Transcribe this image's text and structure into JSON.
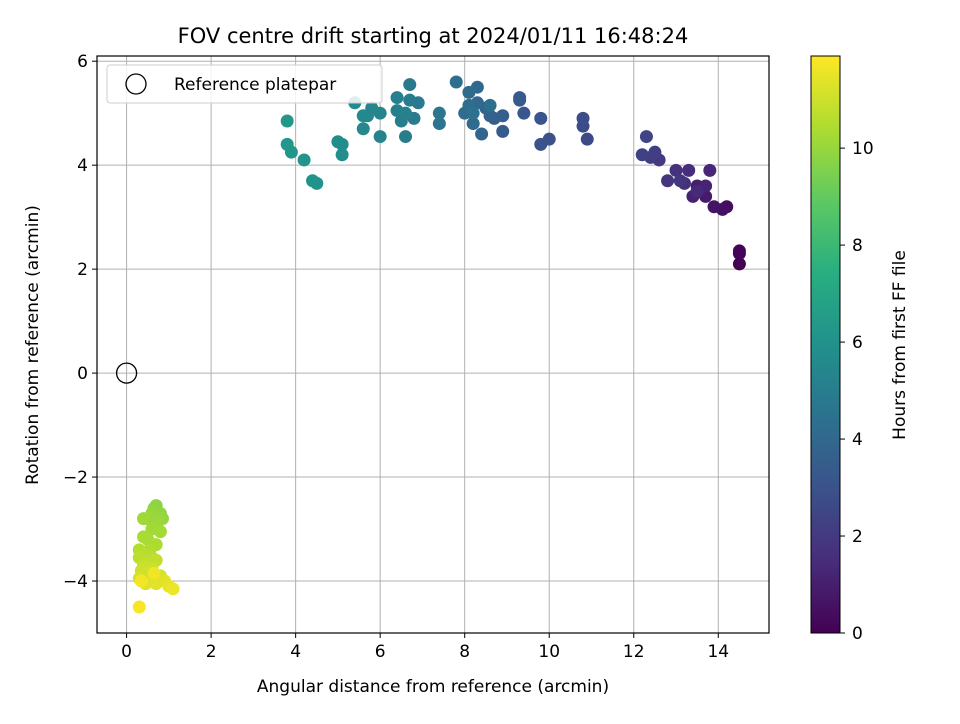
{
  "chart_data": {
    "type": "scatter",
    "title": "FOV centre drift starting at 2024/01/11 16:48:24",
    "xlabel": "Angular distance from reference (arcmin)",
    "ylabel": "Rotation from reference (arcmin)",
    "xlim": [
      -0.7,
      15.2
    ],
    "ylim": [
      -5.0,
      6.1
    ],
    "grid": true,
    "legend": {
      "placement": "top-left",
      "entries": [
        "Reference platepar"
      ]
    },
    "x_ticks": [
      {
        "value": 0,
        "label": "0"
      },
      {
        "value": 2,
        "label": "2"
      },
      {
        "value": 4,
        "label": "4"
      },
      {
        "value": 6,
        "label": "6"
      },
      {
        "value": 8,
        "label": "8"
      },
      {
        "value": 10,
        "label": "10"
      },
      {
        "value": 12,
        "label": "12"
      },
      {
        "value": 14,
        "label": "14"
      }
    ],
    "y_ticks": [
      {
        "value": -4,
        "label": "−4"
      },
      {
        "value": -2,
        "label": "−2"
      },
      {
        "value": 0,
        "label": "0"
      },
      {
        "value": 2,
        "label": "2"
      },
      {
        "value": 4,
        "label": "4"
      },
      {
        "value": 6,
        "label": "6"
      }
    ],
    "reference_point": {
      "x": 0,
      "y": 0,
      "name": "Reference platepar"
    },
    "colorbar": {
      "label": "Hours from first FF file",
      "colormap": "viridis",
      "range": [
        0,
        11.9
      ],
      "ticks": [
        {
          "value": 0,
          "label": "0"
        },
        {
          "value": 2,
          "label": "2"
        },
        {
          "value": 4,
          "label": "4"
        },
        {
          "value": 6,
          "label": "6"
        },
        {
          "value": 8,
          "label": "8"
        },
        {
          "value": 10,
          "label": "10"
        }
      ]
    },
    "points": [
      [
        14.5,
        2.1,
        0.0
      ],
      [
        14.5,
        2.3,
        0.1
      ],
      [
        14.5,
        2.35,
        0.15
      ],
      [
        14.2,
        3.2,
        0.4
      ],
      [
        14.1,
        3.15,
        0.5
      ],
      [
        13.9,
        3.2,
        0.6
      ],
      [
        13.7,
        3.4,
        0.8
      ],
      [
        13.6,
        3.5,
        0.9
      ],
      [
        13.5,
        3.6,
        1.0
      ],
      [
        13.4,
        3.4,
        1.1
      ],
      [
        13.7,
        3.6,
        1.2
      ],
      [
        13.8,
        3.9,
        1.3
      ],
      [
        13.5,
        3.5,
        1.4
      ],
      [
        13.3,
        3.9,
        1.5
      ],
      [
        13.2,
        3.65,
        1.6
      ],
      [
        13.0,
        3.9,
        1.7
      ],
      [
        12.8,
        3.7,
        1.8
      ],
      [
        13.1,
        3.7,
        1.9
      ],
      [
        12.6,
        4.1,
        2.0
      ],
      [
        12.4,
        4.15,
        2.1
      ],
      [
        12.5,
        4.25,
        2.2
      ],
      [
        12.2,
        4.2,
        2.3
      ],
      [
        12.3,
        4.55,
        2.4
      ],
      [
        10.9,
        4.5,
        2.6
      ],
      [
        10.8,
        4.75,
        2.7
      ],
      [
        10.8,
        4.9,
        2.8
      ],
      [
        10.0,
        4.5,
        2.9
      ],
      [
        9.8,
        4.4,
        3.0
      ],
      [
        9.8,
        4.9,
        3.1
      ],
      [
        9.4,
        5.0,
        3.2
      ],
      [
        9.3,
        5.3,
        3.3
      ],
      [
        9.3,
        5.25,
        3.35
      ],
      [
        8.9,
        4.65,
        3.4
      ],
      [
        8.9,
        4.95,
        3.5
      ],
      [
        8.7,
        4.9,
        3.6
      ],
      [
        8.6,
        4.95,
        3.7
      ],
      [
        8.5,
        5.1,
        3.8
      ],
      [
        8.4,
        4.6,
        3.9
      ],
      [
        8.3,
        5.2,
        4.0
      ],
      [
        8.3,
        5.5,
        4.05
      ],
      [
        8.1,
        5.4,
        4.1
      ],
      [
        8.2,
        4.8,
        4.15
      ],
      [
        8.0,
        5.0,
        4.2
      ],
      [
        8.1,
        5.15,
        4.25
      ],
      [
        7.8,
        5.6,
        4.3
      ],
      [
        8.6,
        5.15,
        4.35
      ],
      [
        8.2,
        5.0,
        4.4
      ],
      [
        7.4,
        4.8,
        4.6
      ],
      [
        7.4,
        5.0,
        4.7
      ],
      [
        6.9,
        5.2,
        4.8
      ],
      [
        6.7,
        5.55,
        4.85
      ],
      [
        6.8,
        4.9,
        4.9
      ],
      [
        6.7,
        5.25,
        4.95
      ],
      [
        6.6,
        4.55,
        5.0
      ],
      [
        6.5,
        4.85,
        5.05
      ],
      [
        6.4,
        5.05,
        5.1
      ],
      [
        6.4,
        5.3,
        5.15
      ],
      [
        6.6,
        5.0,
        5.2
      ],
      [
        6.0,
        4.55,
        5.3
      ],
      [
        6.0,
        5.0,
        5.35
      ],
      [
        5.8,
        5.1,
        5.4
      ],
      [
        5.7,
        4.95,
        5.45
      ],
      [
        5.6,
        4.7,
        5.5
      ],
      [
        5.6,
        4.95,
        5.55
      ],
      [
        5.4,
        5.2,
        5.6
      ],
      [
        5.1,
        4.2,
        5.7
      ],
      [
        5.1,
        4.4,
        5.75
      ],
      [
        5.0,
        4.45,
        5.8
      ],
      [
        4.5,
        3.65,
        6.0
      ],
      [
        4.4,
        3.7,
        6.05
      ],
      [
        4.2,
        4.1,
        6.1
      ],
      [
        3.9,
        4.25,
        6.2
      ],
      [
        3.8,
        4.4,
        6.25
      ],
      [
        3.8,
        4.85,
        6.3
      ],
      [
        0.7,
        -2.55,
        9.8
      ],
      [
        0.65,
        -2.6,
        9.85
      ],
      [
        0.8,
        -2.7,
        9.9
      ],
      [
        0.85,
        -2.8,
        9.95
      ],
      [
        0.6,
        -2.7,
        10.0
      ],
      [
        0.5,
        -2.8,
        10.05
      ],
      [
        0.75,
        -2.85,
        10.1
      ],
      [
        0.4,
        -2.8,
        10.15
      ],
      [
        0.6,
        -3.0,
        10.2
      ],
      [
        0.8,
        -3.05,
        10.25
      ],
      [
        0.5,
        -3.2,
        10.3
      ],
      [
        0.4,
        -3.15,
        10.35
      ],
      [
        0.7,
        -3.3,
        10.4
      ],
      [
        0.55,
        -3.4,
        10.45
      ],
      [
        0.3,
        -3.4,
        10.5
      ],
      [
        0.45,
        -3.5,
        10.6
      ],
      [
        0.6,
        -3.55,
        10.65
      ],
      [
        0.3,
        -3.55,
        10.7
      ],
      [
        0.5,
        -3.65,
        10.75
      ],
      [
        0.7,
        -3.6,
        10.8
      ],
      [
        0.4,
        -3.7,
        10.9
      ],
      [
        0.6,
        -3.75,
        10.95
      ],
      [
        0.35,
        -3.8,
        11.0
      ],
      [
        0.5,
        -3.85,
        11.05
      ],
      [
        0.8,
        -3.9,
        11.1
      ],
      [
        0.3,
        -3.95,
        11.15
      ],
      [
        0.6,
        -4.0,
        11.2
      ],
      [
        0.45,
        -4.05,
        11.3
      ],
      [
        0.9,
        -4.0,
        11.35
      ],
      [
        0.7,
        -4.05,
        11.4
      ],
      [
        1.0,
        -4.1,
        11.5
      ],
      [
        1.1,
        -4.15,
        11.6
      ],
      [
        0.65,
        -3.85,
        11.65
      ],
      [
        0.35,
        -4.0,
        11.7
      ],
      [
        0.3,
        -4.5,
        11.8
      ]
    ]
  }
}
